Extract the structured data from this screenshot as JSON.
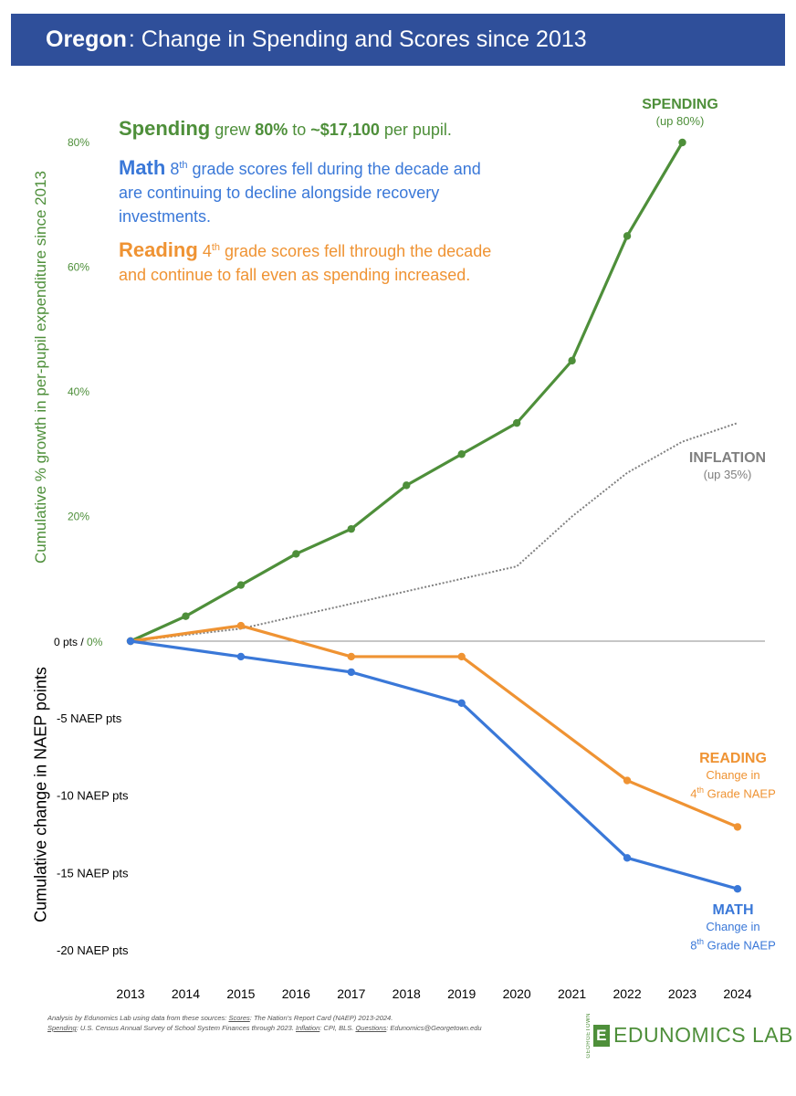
{
  "header": {
    "state": "Oregon",
    "title": ": Change in Spending and Scores since 2013"
  },
  "annotations": {
    "spending": {
      "head": "Spending",
      "text1": " grew ",
      "pct": "80%",
      "text2": " to ",
      "amount": "~$17,100",
      "text3": " per pupil."
    },
    "math": {
      "head": "Math",
      "grade": "8",
      "sup": "th",
      "text": " grade scores fell during the decade and are continuing to decline alongside recovery investments."
    },
    "reading": {
      "head": "Reading",
      "grade": "4",
      "sup": "th",
      "text": " grade scores fell through the decade and continue to fall even as spending increased."
    }
  },
  "series_labels": {
    "spending": {
      "title": "SPENDING",
      "sub": "(up 80%)"
    },
    "inflation": {
      "title": "INFLATION",
      "sub": "(up 35%)"
    },
    "reading": {
      "title": "READING",
      "sub1": "Change in",
      "sub2_num": "4",
      "sub2_sup": "th",
      "sub2_rest": " Grade NAEP"
    },
    "math": {
      "title": "MATH",
      "sub1": "Change in",
      "sub2_num": "8",
      "sub2_sup": "th",
      "sub2_rest": " Grade NAEP"
    }
  },
  "footnote": {
    "line1": "Analysis by Edunomics Lab using data from these sources: ",
    "scores_label": "Scores",
    "scores_text": ": The Nation's Report Card (NAEP) 2013-2024.",
    "spending_label": "Spending",
    "spending_text": ": U.S. Census Annual Survey of School System Finances through 2023. ",
    "inflation_label": "Inflation",
    "inflation_text": ": CPI, BLS. ",
    "questions_label": "Questions",
    "questions_text": ": Edunomics@Georgetown.edu"
  },
  "logo": {
    "mark": "E",
    "text": "EDUNOMICS LAB",
    "side": "GEORGETOWN"
  },
  "colors": {
    "banner": "#2f4f9a",
    "spending": "#4e8f3a",
    "math": "#3a78d8",
    "reading": "#ef9333",
    "inflation": "#808080"
  },
  "chart_data": {
    "type": "line",
    "x": [
      "2013",
      "2014",
      "2015",
      "2016",
      "2017",
      "2018",
      "2019",
      "2020",
      "2021",
      "2022",
      "2023",
      "2024"
    ],
    "ylabel_upper": "Cumulative % growth in per-pupil expenditure since 2013",
    "ylabel_lower": "Cumulative change in NAEP points",
    "upper_ticks": [
      "20%",
      "40%",
      "60%",
      "80%"
    ],
    "zero_tick": {
      "left": "0 pts / ",
      "right": "0%"
    },
    "lower_ticks": [
      "-5 NAEP pts",
      "-10 NAEP pts",
      "-15 NAEP pts",
      "-20 NAEP pts"
    ],
    "ylim_percent": [
      0,
      80
    ],
    "ylim_naep": [
      -20,
      0
    ],
    "series": [
      {
        "name": "SPENDING",
        "unit": "percent",
        "style": "solid-markers",
        "points": [
          [
            "2013",
            0
          ],
          [
            "2014",
            4
          ],
          [
            "2015",
            9
          ],
          [
            "2016",
            14
          ],
          [
            "2017",
            18
          ],
          [
            "2018",
            25
          ],
          [
            "2019",
            30
          ],
          [
            "2020",
            35
          ],
          [
            "2021",
            45
          ],
          [
            "2022",
            65
          ],
          [
            "2023",
            80
          ]
        ]
      },
      {
        "name": "INFLATION",
        "unit": "percent",
        "style": "dotted",
        "points": [
          [
            "2013",
            0
          ],
          [
            "2014",
            1
          ],
          [
            "2015",
            2
          ],
          [
            "2016",
            4
          ],
          [
            "2017",
            6
          ],
          [
            "2018",
            8
          ],
          [
            "2019",
            10
          ],
          [
            "2020",
            12
          ],
          [
            "2021",
            20
          ],
          [
            "2022",
            27
          ],
          [
            "2023",
            32
          ],
          [
            "2024",
            35
          ]
        ]
      },
      {
        "name": "READING",
        "unit": "naep",
        "style": "solid-markers",
        "points": [
          [
            "2013",
            0
          ],
          [
            "2015",
            1
          ],
          [
            "2017",
            -1
          ],
          [
            "2019",
            -1
          ],
          [
            "2022",
            -9
          ],
          [
            "2024",
            -12
          ]
        ]
      },
      {
        "name": "MATH",
        "unit": "naep",
        "style": "solid-markers",
        "points": [
          [
            "2013",
            0
          ],
          [
            "2015",
            -1
          ],
          [
            "2017",
            -2
          ],
          [
            "2019",
            -4
          ],
          [
            "2022",
            -14
          ],
          [
            "2024",
            -16
          ]
        ]
      }
    ]
  }
}
